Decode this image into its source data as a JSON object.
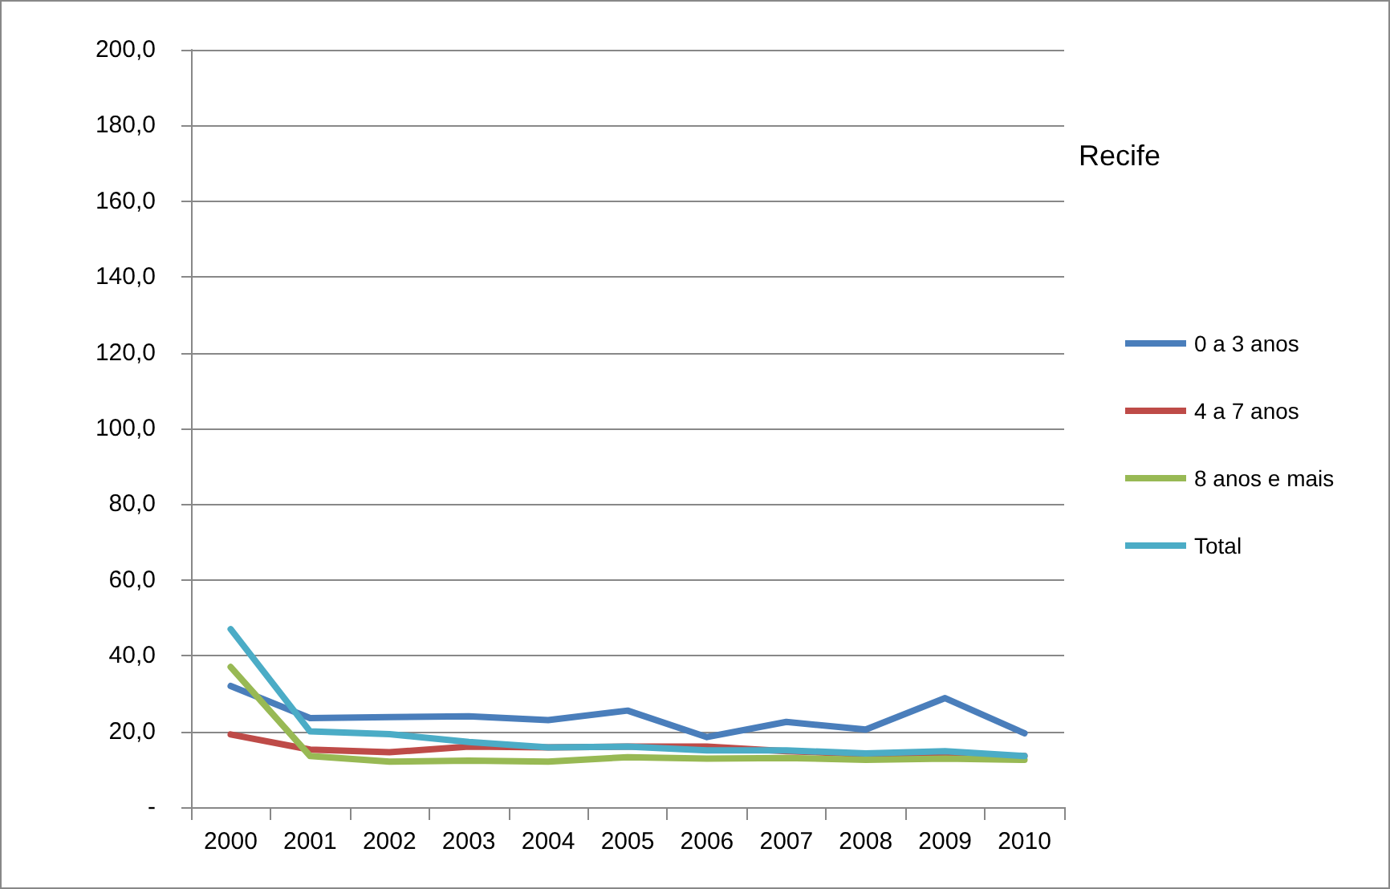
{
  "chart_data": {
    "type": "line",
    "title": "Recife",
    "categories": [
      "2000",
      "2001",
      "2002",
      "2003",
      "2004",
      "2005",
      "2006",
      "2007",
      "2008",
      "2009",
      "2010"
    ],
    "series": [
      {
        "name": "0 a 3 anos",
        "color": "#4a7ebb",
        "values": [
          32,
          23.5,
          23.8,
          24,
          23,
          25.5,
          18.5,
          22.5,
          20.5,
          28.8,
          19.5
        ]
      },
      {
        "name": "4 a 7 anos",
        "color": "#be4b48",
        "values": [
          19.2,
          15.2,
          14.5,
          16,
          15.8,
          16,
          16,
          14.8,
          14,
          13.5,
          13.5
        ]
      },
      {
        "name": "8 anos e mais",
        "color": "#98b954",
        "values": [
          37,
          13.5,
          12,
          12.3,
          12,
          13.2,
          12.8,
          13,
          12.5,
          12.8,
          12.5
        ]
      },
      {
        "name": "Total",
        "color": "#4bacc6",
        "values": [
          47,
          20,
          19.3,
          17.2,
          15.8,
          16,
          15,
          15,
          14.2,
          14.8,
          13.5
        ]
      }
    ],
    "ylim": [
      0,
      200
    ],
    "yticks": [
      {
        "value": 0,
        "label": "-"
      },
      {
        "value": 20,
        "label": "20,0"
      },
      {
        "value": 40,
        "label": "40,0"
      },
      {
        "value": 60,
        "label": "60,0"
      },
      {
        "value": 80,
        "label": "80,0"
      },
      {
        "value": 100,
        "label": "100,0"
      },
      {
        "value": 120,
        "label": "120,0"
      },
      {
        "value": 140,
        "label": "140,0"
      },
      {
        "value": 160,
        "label": "160,0"
      },
      {
        "value": 180,
        "label": "180,0"
      },
      {
        "value": 200,
        "label": "200,0"
      }
    ],
    "grid": "y",
    "legend": "right",
    "marker": "none",
    "line_style": "solid"
  }
}
